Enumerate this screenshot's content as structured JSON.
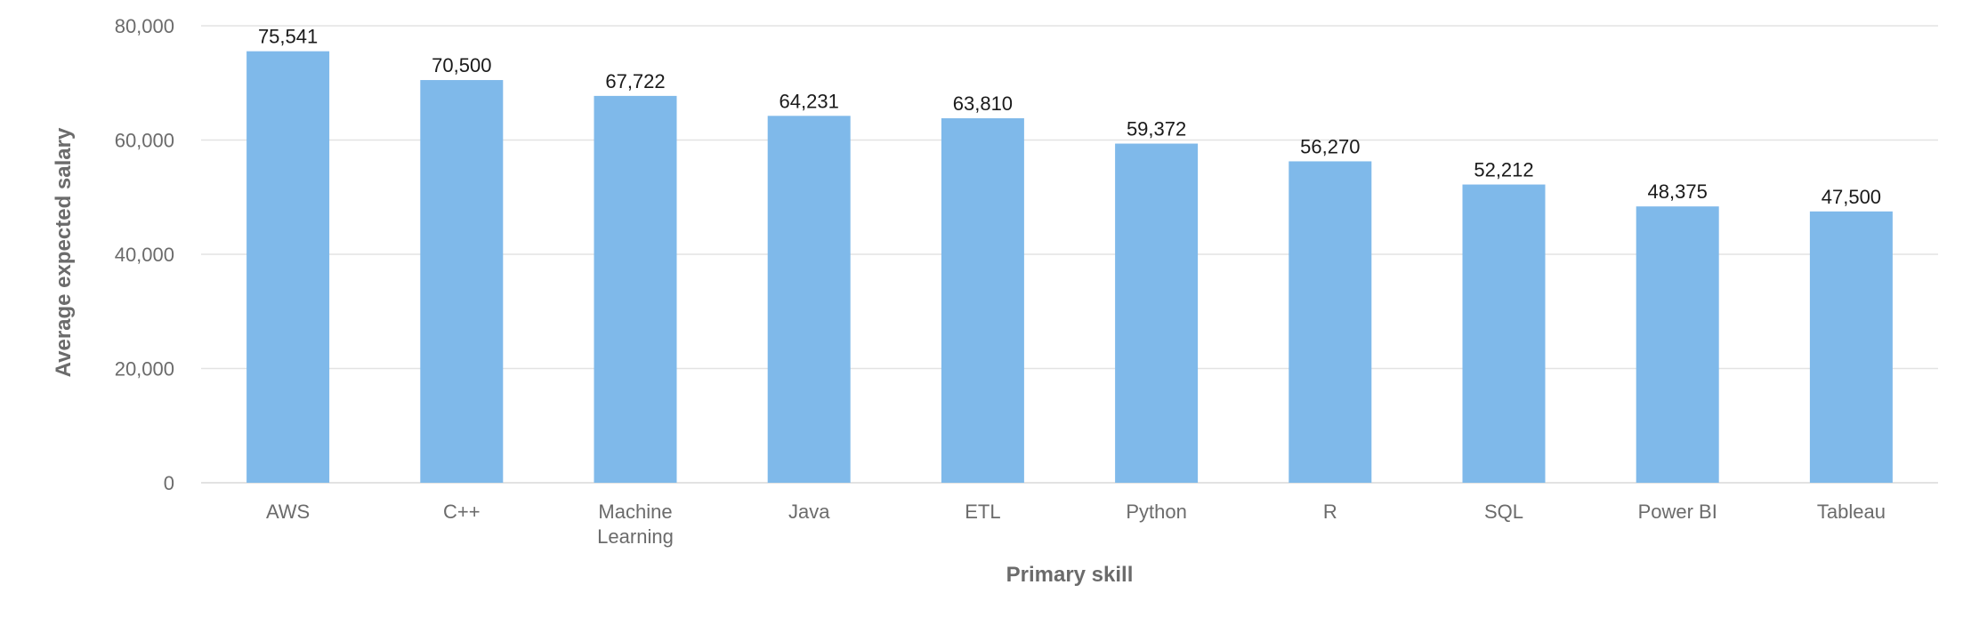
{
  "chart_data": {
    "type": "bar",
    "title": "",
    "xlabel": "Primary skill",
    "ylabel": "Average expected salary",
    "categories": [
      [
        "AWS"
      ],
      [
        "C++"
      ],
      [
        "Machine",
        "Learning"
      ],
      [
        "Java"
      ],
      [
        "ETL"
      ],
      [
        "Python"
      ],
      [
        "R"
      ],
      [
        "SQL"
      ],
      [
        "Power BI"
      ],
      [
        "Tableau"
      ]
    ],
    "values": [
      75541,
      70500,
      67722,
      64231,
      63810,
      59372,
      56270,
      52212,
      48375,
      47500
    ],
    "data_labels": [
      "75,541",
      "70,500",
      "67,722",
      "64,231",
      "63,810",
      "59,372",
      "56,270",
      "52,212",
      "48,375",
      "47,500"
    ],
    "ylim": [
      0,
      80000
    ],
    "yticks": [
      0,
      20000,
      40000,
      60000,
      80000
    ],
    "ytick_labels": [
      "0",
      "20,000",
      "40,000",
      "60,000",
      "80,000"
    ],
    "grid": true,
    "legend": "none",
    "bar_color": "#7fb9ea"
  }
}
